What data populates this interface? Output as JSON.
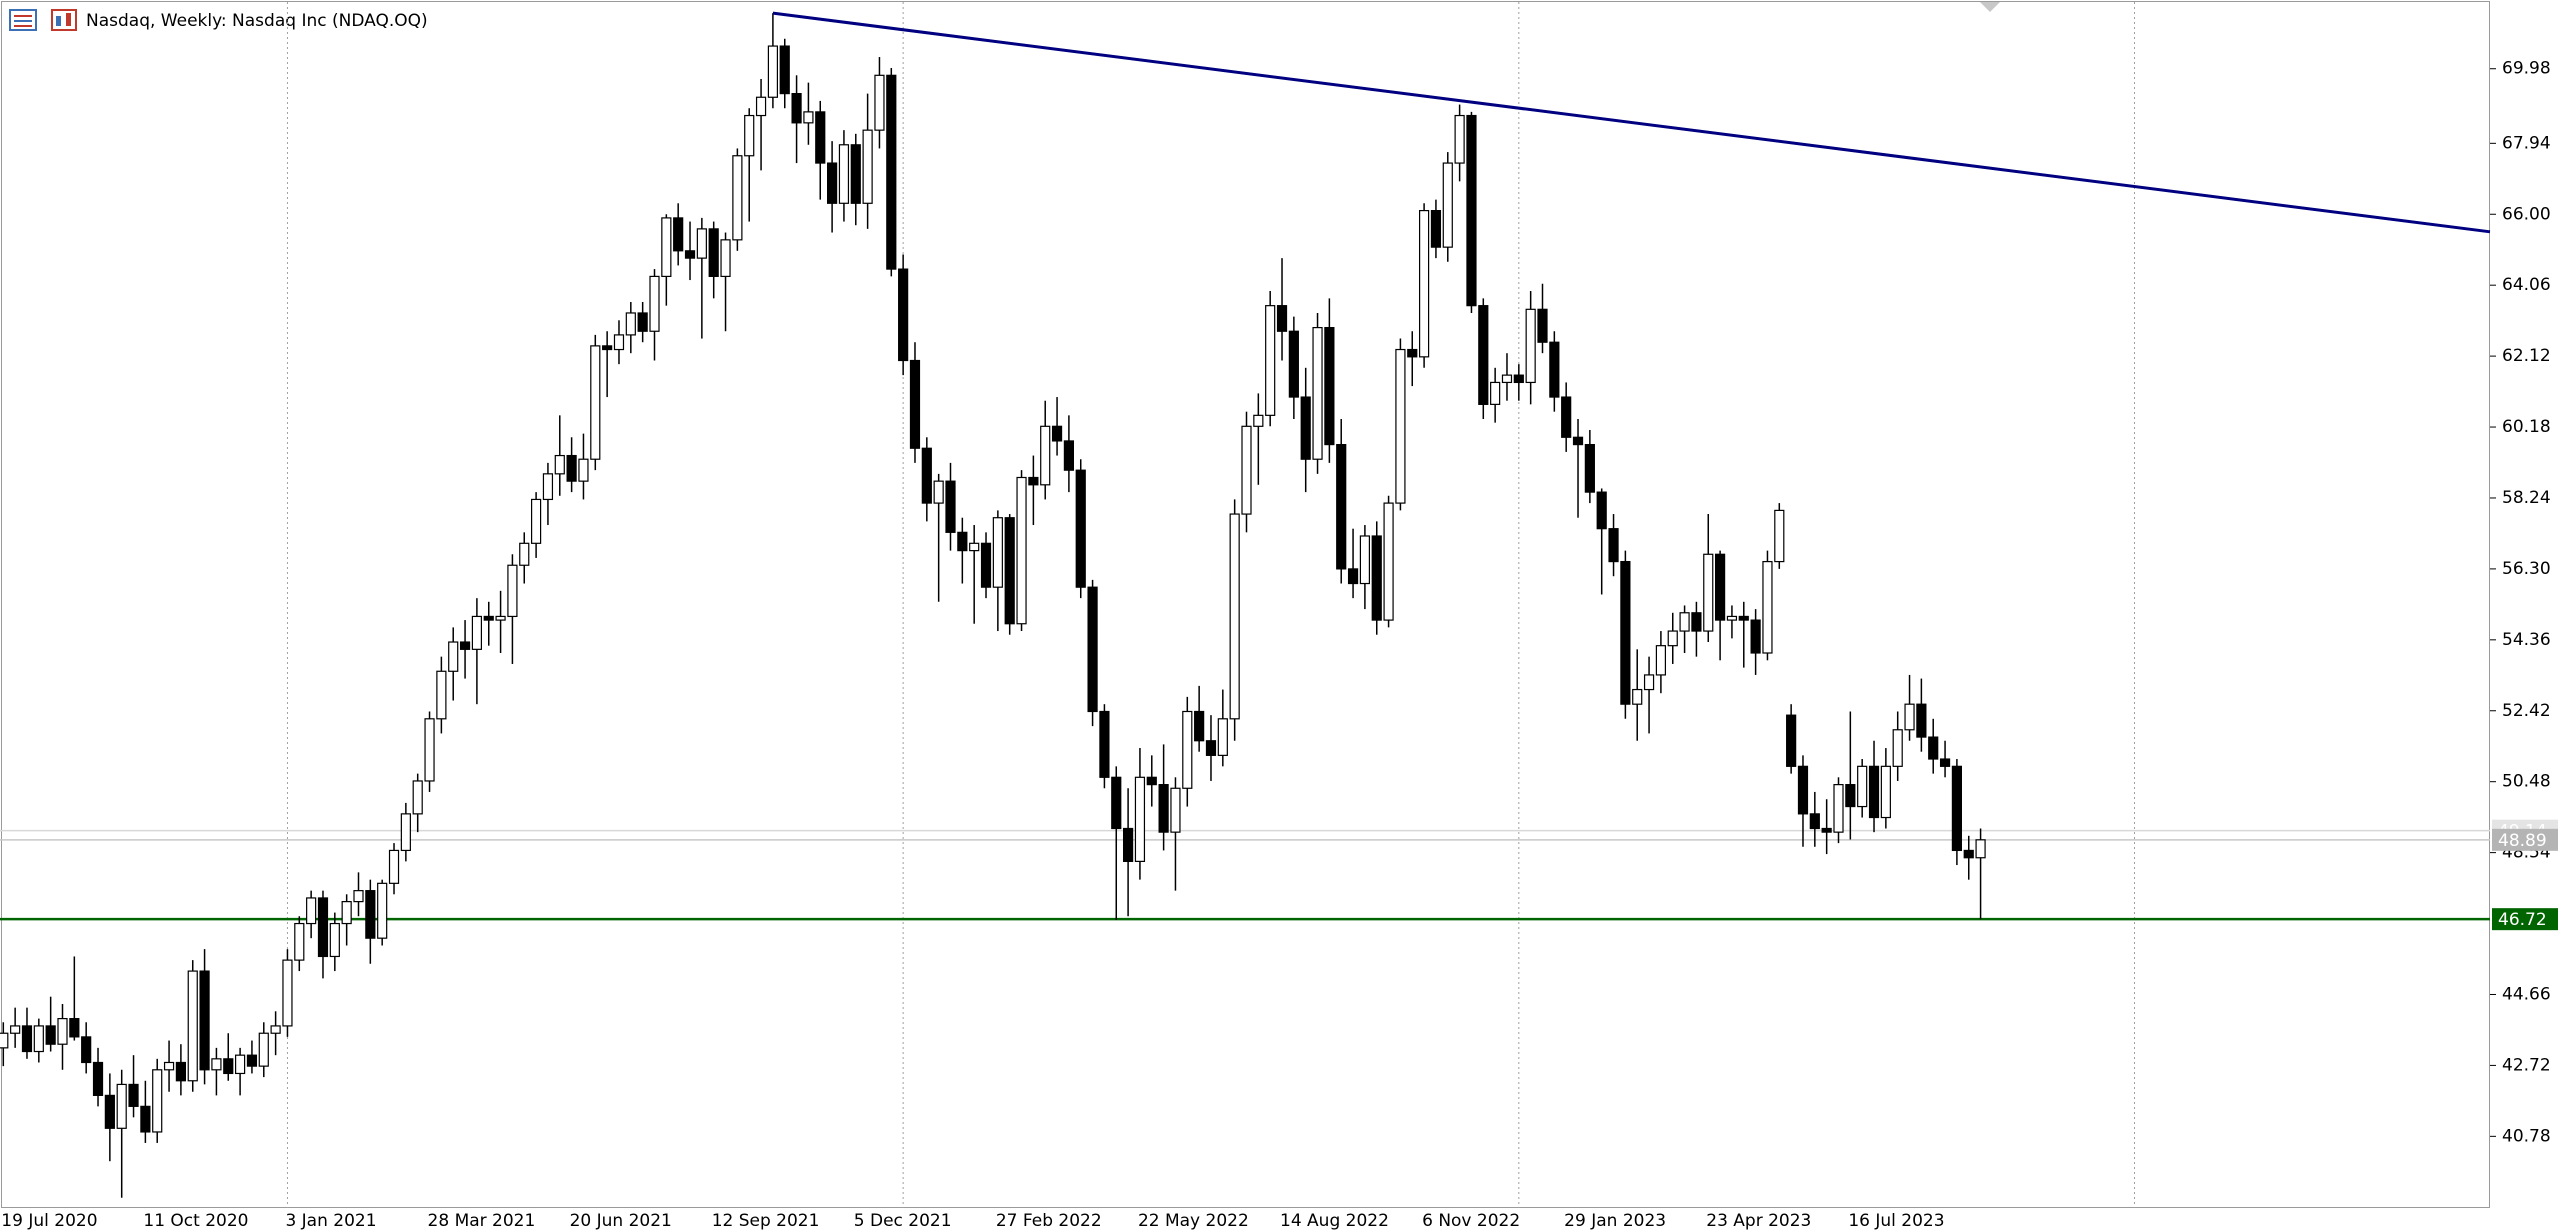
{
  "chart_data": {
    "type": "candlestick",
    "title": "Nasdaq, Weekly:  Nasdaq Inc (NDAQ.OQ)",
    "up_color": "#ffffff",
    "down_color": "#000000",
    "categories": [
      "19 Jul 2020",
      null,
      null,
      null,
      null,
      null,
      null,
      null,
      null,
      null,
      null,
      null,
      "11 Oct 2020",
      null,
      null,
      null,
      null,
      null,
      null,
      null,
      null,
      null,
      null,
      null,
      "3 Jan 2021",
      null,
      null,
      null,
      null,
      null,
      null,
      null,
      null,
      null,
      null,
      null,
      "28 Mar 2021",
      null,
      null,
      null,
      null,
      null,
      null,
      null,
      null,
      null,
      null,
      null,
      "20 Jun 2021",
      null,
      null,
      null,
      null,
      null,
      null,
      null,
      null,
      null,
      null,
      null,
      "12 Sep 2021",
      null,
      null,
      null,
      null,
      null,
      null,
      null,
      null,
      null,
      null,
      null,
      "5 Dec 2021",
      null,
      null,
      null,
      null,
      null,
      null,
      null,
      null,
      null,
      null,
      null,
      "27 Feb 2022",
      null,
      null,
      null,
      null,
      null,
      null,
      null,
      null,
      null,
      null,
      null,
      "22 May 2022",
      null,
      null,
      null,
      null,
      null,
      null,
      null,
      null,
      null,
      null,
      null,
      "14 Aug 2022",
      null,
      null,
      null,
      null,
      null,
      null,
      null,
      null,
      null,
      null,
      null,
      "6 Nov 2022",
      null,
      null,
      null,
      null,
      null,
      null,
      null,
      null,
      null,
      null,
      null,
      "29 Jan 2023",
      null,
      null,
      null,
      null,
      null,
      null,
      null,
      null,
      null,
      null,
      null,
      "23 Apr 2023",
      null,
      null,
      null,
      null,
      null,
      null,
      null,
      null,
      null,
      null,
      null,
      "16 Jul 2023",
      null,
      null,
      null,
      null,
      null,
      null,
      null,
      null,
      null,
      null,
      null
    ],
    "open": [
      43.2,
      43.6,
      43.8,
      43.1,
      43.8,
      43.3,
      44.0,
      43.5,
      42.8,
      41.9,
      41.0,
      42.2,
      41.6,
      40.9,
      42.6,
      42.8,
      42.3,
      45.3,
      42.6,
      42.9,
      42.5,
      43.0,
      42.7,
      43.6,
      43.8,
      45.6,
      46.6,
      47.3,
      45.7,
      46.6,
      47.2,
      47.5,
      46.2,
      47.7,
      48.6,
      49.6,
      50.5,
      52.2,
      53.5,
      54.3,
      54.1,
      55.0,
      54.9,
      55.0,
      56.4,
      57.0,
      58.2,
      58.9,
      59.4,
      58.7,
      59.3,
      62.4,
      62.3,
      62.7,
      63.3,
      62.8,
      64.3,
      65.9,
      65.0,
      64.8,
      65.6,
      64.3,
      65.3,
      67.6,
      68.7,
      69.2,
      70.6,
      69.3,
      68.5,
      68.8,
      67.4,
      66.3,
      67.9,
      66.3,
      68.3,
      69.8,
      64.5,
      62.0,
      59.6,
      58.1,
      58.7,
      57.3,
      56.8,
      57.0,
      55.8,
      57.7,
      54.8,
      58.8,
      58.6,
      60.2,
      59.8,
      59.0,
      55.8,
      52.4,
      50.6,
      49.2,
      48.3,
      50.6,
      50.4,
      49.1,
      50.3,
      52.4,
      51.6,
      51.2,
      52.2,
      57.8,
      60.2,
      60.5,
      63.5,
      62.8,
      61.0,
      59.3,
      62.9,
      59.7,
      56.3,
      55.9,
      57.2,
      54.9,
      58.1,
      62.3,
      62.1,
      66.1,
      65.1,
      67.4,
      68.7,
      63.5,
      60.8,
      61.4,
      61.6,
      61.4,
      63.4,
      62.5,
      61.0,
      59.9,
      59.7,
      58.4,
      57.4,
      56.5,
      52.6,
      53.0,
      53.4,
      54.2,
      54.6,
      55.1,
      54.6,
      56.7,
      54.9,
      55.0,
      54.9,
      54.0,
      56.5,
      52.3,
      50.9,
      49.6,
      49.2,
      49.1,
      50.4,
      49.8,
      50.9,
      49.5,
      50.9,
      51.9,
      52.6,
      51.7,
      51.1,
      50.9,
      48.6,
      48.4
    ],
    "high": [
      43.9,
      44.3,
      44.3,
      44.0,
      44.6,
      44.4,
      45.7,
      43.9,
      43.2,
      42.5,
      42.6,
      43.0,
      42.3,
      42.9,
      43.4,
      43.3,
      45.6,
      45.9,
      43.2,
      43.6,
      43.2,
      43.4,
      43.9,
      44.2,
      45.9,
      46.8,
      47.5,
      47.5,
      46.9,
      47.4,
      48.0,
      47.8,
      47.8,
      48.8,
      49.9,
      50.7,
      52.4,
      53.9,
      54.7,
      54.9,
      55.5,
      55.4,
      55.7,
      56.7,
      57.3,
      58.4,
      59.2,
      60.5,
      59.9,
      60.0,
      62.7,
      62.8,
      63.1,
      63.6,
      63.6,
      64.5,
      66.0,
      66.3,
      65.8,
      65.9,
      65.8,
      65.5,
      67.8,
      68.9,
      69.7,
      71.5,
      70.8,
      69.8,
      69.6,
      69.1,
      68.0,
      68.3,
      68.2,
      69.3,
      70.3,
      70.0,
      64.9,
      62.5,
      59.9,
      58.9,
      59.2,
      57.7,
      57.5,
      57.3,
      57.9,
      57.8,
      59.0,
      59.4,
      60.9,
      61.0,
      60.5,
      59.3,
      56.0,
      52.6,
      50.9,
      50.3,
      51.4,
      51.2,
      51.5,
      50.6,
      52.8,
      53.1,
      52.3,
      53.0,
      58.2,
      60.6,
      61.1,
      63.9,
      64.8,
      63.2,
      61.8,
      63.3,
      63.7,
      60.4,
      57.4,
      57.5,
      57.6,
      58.3,
      62.6,
      62.8,
      66.3,
      66.4,
      67.7,
      69.0,
      68.8,
      63.7,
      61.8,
      62.2,
      61.9,
      63.9,
      64.1,
      62.8,
      61.4,
      60.4,
      60.1,
      58.5,
      57.8,
      56.8,
      54.1,
      53.9,
      54.6,
      55.1,
      55.3,
      55.4,
      57.8,
      56.8,
      55.3,
      55.4,
      55.2,
      56.8,
      58.1,
      52.6,
      51.2,
      50.2,
      50.0,
      50.6,
      52.4,
      51.1,
      51.6,
      51.4,
      52.4,
      53.4,
      53.3,
      52.2,
      51.6,
      51.1,
      49.0,
      49.2
    ],
    "low": [
      42.7,
      43.2,
      42.9,
      42.8,
      43.1,
      42.6,
      43.4,
      42.5,
      41.6,
      40.1,
      39.1,
      41.3,
      40.6,
      40.6,
      42.0,
      41.9,
      42.0,
      42.2,
      41.9,
      42.3,
      41.9,
      42.5,
      42.4,
      43.0,
      43.5,
      45.3,
      46.2,
      45.1,
      45.3,
      46.0,
      46.8,
      45.5,
      46.0,
      47.4,
      48.3,
      49.1,
      50.2,
      51.8,
      52.7,
      53.3,
      52.6,
      54.2,
      54.0,
      53.7,
      55.9,
      56.6,
      57.5,
      58.3,
      58.4,
      58.2,
      59.0,
      61.0,
      61.9,
      62.2,
      62.5,
      62.0,
      63.5,
      64.6,
      64.2,
      62.6,
      63.7,
      62.8,
      65.0,
      65.8,
      67.2,
      68.9,
      68.9,
      67.4,
      67.9,
      66.4,
      65.5,
      65.8,
      65.7,
      65.6,
      67.8,
      64.3,
      61.6,
      59.2,
      57.6,
      55.4,
      56.8,
      55.9,
      54.8,
      55.5,
      54.6,
      54.5,
      54.6,
      57.5,
      58.2,
      59.4,
      58.4,
      55.5,
      52.0,
      50.3,
      46.7,
      46.8,
      47.8,
      49.8,
      48.6,
      47.5,
      49.8,
      51.3,
      50.5,
      50.9,
      51.6,
      57.3,
      58.6,
      60.2,
      62.0,
      60.4,
      58.4,
      58.9,
      59.2,
      55.9,
      55.5,
      55.2,
      54.5,
      54.7,
      57.9,
      61.3,
      61.8,
      64.8,
      64.7,
      66.9,
      63.3,
      60.4,
      60.3,
      60.9,
      60.9,
      60.8,
      62.2,
      60.6,
      59.5,
      57.7,
      58.1,
      55.6,
      56.1,
      52.2,
      51.6,
      51.8,
      52.9,
      53.7,
      54.0,
      53.9,
      54.3,
      53.8,
      54.4,
      53.6,
      53.4,
      53.8,
      56.3,
      50.7,
      48.7,
      48.7,
      48.5,
      48.8,
      48.9,
      49.5,
      49.1,
      49.2,
      50.5,
      51.6,
      51.3,
      50.7,
      50.6,
      48.2,
      47.8,
      46.72
    ],
    "close": [
      43.6,
      43.8,
      43.1,
      43.8,
      43.3,
      44.0,
      43.5,
      42.8,
      41.9,
      41.0,
      42.2,
      41.6,
      40.9,
      42.6,
      42.8,
      42.3,
      45.3,
      42.6,
      42.9,
      42.5,
      43.0,
      42.7,
      43.6,
      43.8,
      45.6,
      46.6,
      47.3,
      45.7,
      46.6,
      47.2,
      47.5,
      46.2,
      47.7,
      48.6,
      49.6,
      50.5,
      52.2,
      53.5,
      54.3,
      54.1,
      55.0,
      54.9,
      55.0,
      56.4,
      57.0,
      58.2,
      58.9,
      59.4,
      58.7,
      59.3,
      62.4,
      62.3,
      62.7,
      63.3,
      62.8,
      64.3,
      65.9,
      65.0,
      64.8,
      65.6,
      64.3,
      65.3,
      67.6,
      68.7,
      69.2,
      70.6,
      69.3,
      68.5,
      68.8,
      67.4,
      66.3,
      67.9,
      66.3,
      68.3,
      69.8,
      64.5,
      62.0,
      59.6,
      58.1,
      58.7,
      57.3,
      56.8,
      57.0,
      55.8,
      57.7,
      54.8,
      58.8,
      58.6,
      60.2,
      59.8,
      59.0,
      55.8,
      52.4,
      50.6,
      49.2,
      48.3,
      50.6,
      50.4,
      49.1,
      50.3,
      52.4,
      51.6,
      51.2,
      52.2,
      57.8,
      60.2,
      60.5,
      63.5,
      62.8,
      61.0,
      59.3,
      62.9,
      59.7,
      56.3,
      55.9,
      57.2,
      54.9,
      58.1,
      62.3,
      62.1,
      66.1,
      65.1,
      67.4,
      68.7,
      63.5,
      60.8,
      61.4,
      61.6,
      61.4,
      63.4,
      62.5,
      61.0,
      59.9,
      59.7,
      58.4,
      57.4,
      56.5,
      52.6,
      53.0,
      53.4,
      54.2,
      54.6,
      55.1,
      54.6,
      56.7,
      54.9,
      55.0,
      54.9,
      54.0,
      56.5,
      57.9,
      50.9,
      49.6,
      49.2,
      49.1,
      50.4,
      49.8,
      50.9,
      49.5,
      50.9,
      51.9,
      52.6,
      51.7,
      51.1,
      50.9,
      48.6,
      48.4,
      48.89
    ],
    "ylim": [
      38.82,
      71.86
    ],
    "yticks": [
      40.78,
      42.72,
      44.66,
      48.54,
      50.48,
      52.42,
      54.36,
      {
        "value": 56.3,
        "label": "56.30"
      },
      58.24,
      60.18,
      62.12,
      64.06,
      {
        "value": 66,
        "label": "66.00"
      },
      67.94,
      69.98
    ],
    "trend_line": {
      "color": "#000080",
      "values": [
        71.5,
        65.52
      ]
    },
    "levels": [
      {
        "value": 46.72,
        "color": "#006400",
        "tag_color": "#006400"
      },
      {
        "value": 49.14,
        "color": "#d8d8d8",
        "tag_color": "#e4e4e4"
      },
      {
        "value": 48.89,
        "color": "#c8c8c8",
        "tag_color": "#b4b4b4"
      }
    ]
  }
}
